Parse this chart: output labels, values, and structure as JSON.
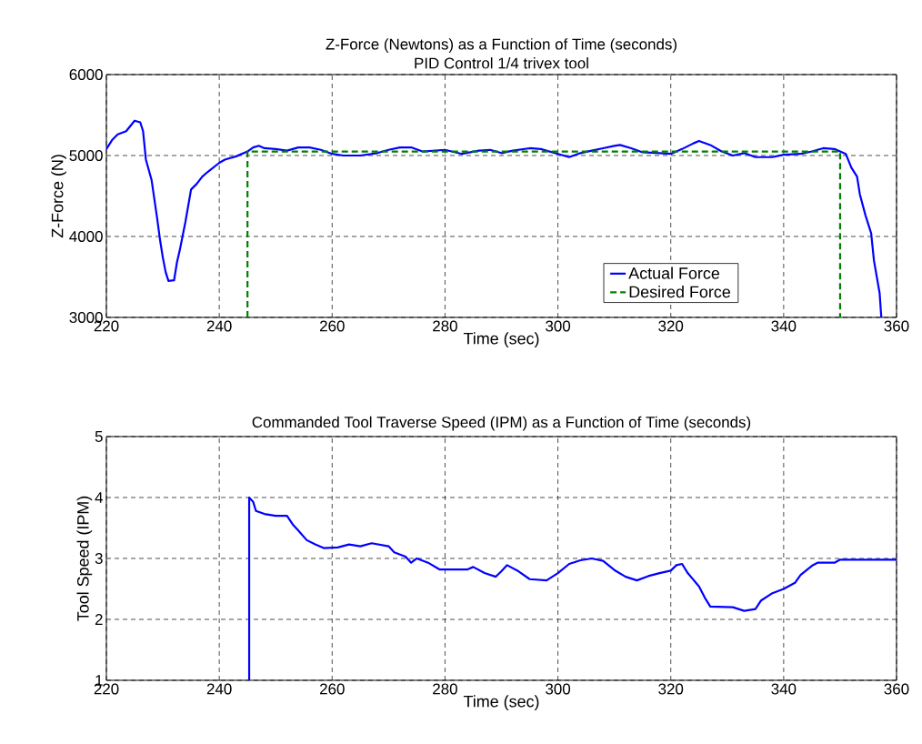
{
  "chart_data": [
    {
      "type": "line",
      "title": "Z-Force (Newtons) as a Function of Time (seconds)",
      "subtitle": "PID Control 1/4 trivex tool",
      "xlabel": "Time (sec)",
      "ylabel": "Z-Force (N)",
      "xlim": [
        220,
        360
      ],
      "ylim": [
        3000,
        6000
      ],
      "xticks": [
        220,
        240,
        260,
        280,
        300,
        320,
        340,
        360
      ],
      "yticks": [
        3000,
        4000,
        5000,
        6000
      ],
      "grid": true,
      "legend": "bottom right",
      "series": [
        {
          "name": "Actual Force",
          "color": "#0000ff",
          "line_style": "solid",
          "x": [
            220,
            221,
            222,
            223.5,
            225,
            226,
            226.5,
            227,
            228,
            229,
            229.5,
            230,
            230.5,
            231,
            232,
            232.5,
            233,
            234,
            235,
            236,
            237,
            238,
            240,
            241,
            243,
            245,
            246,
            247,
            248,
            250,
            252,
            254,
            256,
            258,
            260,
            262,
            265,
            268,
            270,
            272,
            274,
            276,
            280,
            283,
            286,
            288,
            290,
            292,
            295,
            297,
            300,
            302,
            304,
            306,
            308,
            310,
            311,
            313,
            315,
            318,
            320,
            322,
            324,
            325,
            327,
            329,
            331,
            333,
            335,
            338,
            340,
            343,
            345,
            347,
            349,
            351,
            352,
            353,
            353.5,
            354.5,
            355.5,
            356,
            357,
            357.3
          ],
          "values": [
            5080,
            5190,
            5260,
            5300,
            5430,
            5410,
            5300,
            4950,
            4700,
            4220,
            3960,
            3740,
            3560,
            3450,
            3460,
            3680,
            3830,
            4180,
            4580,
            4650,
            4740,
            4800,
            4910,
            4950,
            4990,
            5050,
            5100,
            5120,
            5090,
            5080,
            5060,
            5100,
            5100,
            5070,
            5020,
            5000,
            5000,
            5030,
            5070,
            5100,
            5100,
            5050,
            5070,
            5020,
            5060,
            5070,
            5030,
            5060,
            5090,
            5080,
            5020,
            4980,
            5030,
            5060,
            5090,
            5120,
            5130,
            5090,
            5040,
            5030,
            5020,
            5080,
            5150,
            5180,
            5130,
            5050,
            5000,
            5030,
            4980,
            4980,
            5010,
            5020,
            5050,
            5090,
            5080,
            5020,
            4850,
            4740,
            4520,
            4260,
            4040,
            3700,
            3300,
            3000
          ]
        },
        {
          "name": "Desired Force",
          "color": "#008000",
          "line_style": "dashed",
          "x": [
            245,
            245,
            350,
            350
          ],
          "values": [
            3000,
            5050,
            5050,
            3000
          ]
        }
      ]
    },
    {
      "type": "line",
      "title": "Commanded Tool Traverse Speed (IPM) as a Function of Time (seconds)",
      "xlabel": "Time (sec)",
      "ylabel": "Tool Speed (IPM)",
      "xlim": [
        220,
        360
      ],
      "ylim": [
        1,
        5
      ],
      "xticks": [
        220,
        240,
        260,
        280,
        300,
        320,
        340,
        360
      ],
      "yticks": [
        1,
        2,
        3,
        4,
        5
      ],
      "grid": true,
      "series": [
        {
          "color": "#0000ff",
          "line_style": "solid",
          "x": [
            245.3,
            245.3,
            246,
            246.5,
            248,
            250,
            252,
            253,
            254,
            255.5,
            257,
            258.5,
            261,
            263,
            265,
            267,
            270,
            271,
            273,
            274,
            275,
            277,
            279,
            284,
            285,
            287,
            289,
            290,
            291,
            293,
            295,
            298,
            300,
            302,
            304,
            306,
            308,
            310,
            312,
            314,
            316,
            318,
            320,
            321,
            322,
            323,
            325,
            326,
            327,
            331,
            333,
            335,
            336,
            338,
            340,
            342,
            343,
            345,
            346,
            349,
            350,
            360
          ],
          "values": [
            1,
            4,
            3.93,
            3.78,
            3.73,
            3.7,
            3.7,
            3.56,
            3.46,
            3.3,
            3.23,
            3.17,
            3.18,
            3.23,
            3.2,
            3.25,
            3.2,
            3.1,
            3.03,
            2.93,
            3.0,
            2.93,
            2.82,
            2.82,
            2.86,
            2.76,
            2.7,
            2.79,
            2.89,
            2.79,
            2.66,
            2.64,
            2.76,
            2.91,
            2.97,
            3.0,
            2.96,
            2.81,
            2.7,
            2.64,
            2.71,
            2.76,
            2.8,
            2.89,
            2.91,
            2.76,
            2.54,
            2.36,
            2.21,
            2.2,
            2.14,
            2.17,
            2.31,
            2.43,
            2.5,
            2.6,
            2.73,
            2.88,
            2.93,
            2.93,
            2.98,
            2.98
          ]
        }
      ]
    }
  ]
}
